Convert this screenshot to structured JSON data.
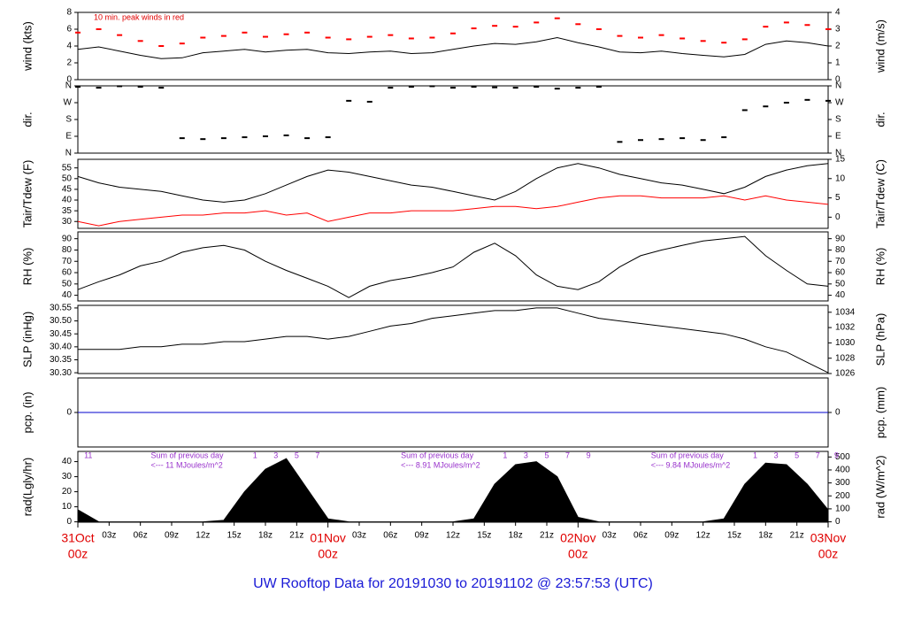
{
  "title": "UW Rooftop Data for 20191030  to  20191102 @ 23:57:53  (UTC)",
  "chart_data": [
    {
      "type": "line",
      "ylabel": "wind (kts)",
      "y2label": "wind (m/s)",
      "annotation": "10 min. peak winds in red",
      "xlim": [
        0,
        72
      ],
      "ylim": [
        0,
        8
      ],
      "yticks": [
        0,
        2,
        4,
        6,
        8
      ],
      "y2lim": [
        0,
        4
      ],
      "y2ticks": [
        0,
        1,
        2,
        3,
        4
      ],
      "x": [
        0,
        2,
        4,
        6,
        8,
        10,
        12,
        14,
        16,
        18,
        20,
        22,
        24,
        26,
        28,
        30,
        32,
        34,
        36,
        38,
        40,
        42,
        44,
        46,
        48,
        50,
        52,
        54,
        56,
        58,
        60,
        62,
        64,
        66,
        68,
        70,
        72
      ],
      "series": [
        {
          "type": "line",
          "color": "#000000",
          "values": [
            3.6,
            3.9,
            3.4,
            2.9,
            2.5,
            2.6,
            3.2,
            3.4,
            3.6,
            3.3,
            3.5,
            3.6,
            3.2,
            3.1,
            3.3,
            3.4,
            3.1,
            3.2,
            3.6,
            4.0,
            4.3,
            4.2,
            4.5,
            5.0,
            4.4,
            3.9,
            3.3,
            3.2,
            3.4,
            3.1,
            2.9,
            2.7,
            3.0,
            4.2,
            4.6,
            4.4,
            4.0
          ]
        },
        {
          "type": "scatter",
          "color": "#ff0000",
          "values": [
            5.6,
            6.0,
            5.3,
            4.6,
            4.0,
            4.3,
            5.0,
            5.2,
            5.6,
            5.1,
            5.4,
            5.6,
            5.0,
            4.8,
            5.1,
            5.3,
            4.9,
            5.0,
            5.5,
            6.1,
            6.4,
            6.3,
            6.8,
            7.3,
            6.6,
            6.0,
            5.2,
            5.0,
            5.3,
            4.9,
            4.6,
            4.4,
            4.8,
            6.3,
            6.8,
            6.5,
            6.0
          ]
        }
      ]
    },
    {
      "type": "scatter",
      "ylabel": "dir.",
      "y2label": "dir.",
      "xlim": [
        0,
        72
      ],
      "ylim": [
        0,
        360
      ],
      "yticks": [
        {
          "value": 0,
          "label": "N"
        },
        {
          "value": 90,
          "label": "E"
        },
        {
          "value": 180,
          "label": "S"
        },
        {
          "value": 270,
          "label": "W"
        },
        {
          "value": 360,
          "label": "N"
        }
      ],
      "y2lim": [
        0,
        360
      ],
      "y2ticks": [
        {
          "value": 0,
          "label": "N"
        },
        {
          "value": 90,
          "label": "E"
        },
        {
          "value": 180,
          "label": "S"
        },
        {
          "value": 270,
          "label": "W"
        },
        {
          "value": 360,
          "label": "N"
        }
      ],
      "x": [
        0,
        2,
        4,
        6,
        8,
        10,
        12,
        14,
        16,
        18,
        20,
        22,
        24,
        26,
        28,
        30,
        32,
        34,
        36,
        38,
        40,
        42,
        44,
        46,
        48,
        50,
        52,
        54,
        56,
        58,
        60,
        62,
        64,
        66,
        68,
        70,
        72
      ],
      "series": [
        {
          "type": "scatter",
          "color": "#000000",
          "values": [
            355,
            350,
            358,
            355,
            350,
            80,
            75,
            80,
            85,
            90,
            95,
            80,
            85,
            280,
            275,
            350,
            355,
            358,
            350,
            355,
            352,
            350,
            355,
            345,
            350,
            355,
            60,
            70,
            75,
            80,
            70,
            85,
            230,
            250,
            270,
            285,
            280
          ]
        }
      ]
    },
    {
      "type": "line",
      "ylabel": "Tair/Tdew (F)",
      "y2label": "Tair/Tdew (C)",
      "xlim": [
        0,
        72
      ],
      "ylim": [
        26.8,
        59
      ],
      "yticks": [
        30,
        35,
        40,
        45,
        50,
        55
      ],
      "y2lim": [
        -2.9,
        15
      ],
      "y2ticks": [
        0,
        5,
        10,
        15
      ],
      "x": [
        0,
        2,
        4,
        6,
        8,
        10,
        12,
        14,
        16,
        18,
        20,
        22,
        24,
        26,
        28,
        30,
        32,
        34,
        36,
        38,
        40,
        42,
        44,
        46,
        48,
        50,
        52,
        54,
        56,
        58,
        60,
        62,
        64,
        66,
        68,
        70,
        72
      ],
      "series": [
        {
          "type": "line",
          "color": "#000000",
          "values": [
            51,
            48,
            46,
            45,
            44,
            42,
            40,
            39,
            40,
            43,
            47,
            51,
            54,
            53,
            51,
            49,
            47,
            46,
            44,
            42,
            40,
            44,
            50,
            55,
            57,
            55,
            52,
            50,
            48,
            47,
            45,
            43,
            46,
            51,
            54,
            56,
            57
          ]
        },
        {
          "type": "line",
          "color": "#ff0000",
          "values": [
            30,
            28,
            30,
            31,
            32,
            33,
            33,
            34,
            34,
            35,
            33,
            34,
            30,
            32,
            34,
            34,
            35,
            35,
            35,
            36,
            37,
            37,
            36,
            37,
            39,
            41,
            42,
            42,
            41,
            41,
            41,
            42,
            40,
            42,
            40,
            39,
            38
          ]
        }
      ]
    },
    {
      "type": "line",
      "ylabel": "RH (%)",
      "y2label": "RH (%)",
      "xlim": [
        0,
        72
      ],
      "ylim": [
        35,
        96
      ],
      "yticks": [
        40,
        50,
        60,
        70,
        80,
        90
      ],
      "y2lim": [
        35,
        96
      ],
      "y2ticks": [
        40,
        50,
        60,
        70,
        80,
        90
      ],
      "x": [
        0,
        2,
        4,
        6,
        8,
        10,
        12,
        14,
        16,
        18,
        20,
        22,
        24,
        26,
        28,
        30,
        32,
        34,
        36,
        38,
        40,
        42,
        44,
        46,
        48,
        50,
        52,
        54,
        56,
        58,
        60,
        62,
        64,
        66,
        68,
        70,
        72
      ],
      "series": [
        {
          "type": "line",
          "color": "#000000",
          "values": [
            45,
            52,
            58,
            66,
            70,
            78,
            82,
            84,
            80,
            70,
            62,
            55,
            48,
            38,
            48,
            53,
            56,
            60,
            65,
            78,
            86,
            75,
            58,
            48,
            45,
            52,
            65,
            75,
            80,
            84,
            88,
            90,
            92,
            75,
            62,
            50,
            48
          ]
        }
      ]
    },
    {
      "type": "line",
      "ylabel": "SLP (inHg)",
      "y2label": "SLP (hPa)",
      "xlim": [
        0,
        72
      ],
      "ylim": [
        30.297,
        30.56
      ],
      "yticks": [
        {
          "value": 30.3,
          "label": "30.30"
        },
        {
          "value": 30.35,
          "label": "30.35"
        },
        {
          "value": 30.4,
          "label": "30.40"
        },
        {
          "value": 30.45,
          "label": "30.45"
        },
        {
          "value": 30.5,
          "label": "30.50"
        },
        {
          "value": 30.55,
          "label": "30.55"
        }
      ],
      "y2lim": [
        1026,
        1034.9
      ],
      "y2ticks": [
        1026,
        1028,
        1030,
        1032,
        1034
      ],
      "x": [
        0,
        2,
        4,
        6,
        8,
        10,
        12,
        14,
        16,
        18,
        20,
        22,
        24,
        26,
        28,
        30,
        32,
        34,
        36,
        38,
        40,
        42,
        44,
        46,
        48,
        50,
        52,
        54,
        56,
        58,
        60,
        62,
        64,
        66,
        68,
        70,
        72
      ],
      "series": [
        {
          "type": "line",
          "color": "#000000",
          "values": [
            30.39,
            30.39,
            30.39,
            30.4,
            30.4,
            30.41,
            30.41,
            30.42,
            30.42,
            30.43,
            30.44,
            30.44,
            30.43,
            30.44,
            30.46,
            30.48,
            30.49,
            30.51,
            30.52,
            30.53,
            30.54,
            30.54,
            30.55,
            30.55,
            30.53,
            30.51,
            30.5,
            30.49,
            30.48,
            30.47,
            30.46,
            30.45,
            30.43,
            30.4,
            30.38,
            30.34,
            30.3
          ]
        }
      ]
    },
    {
      "type": "line",
      "ylabel": "pcp. (in)",
      "y2label": "pcp. (mm)",
      "xlim": [
        0,
        72
      ],
      "ylim": [
        -1,
        1
      ],
      "yticks": [
        0
      ],
      "y2lim": [
        -1,
        1
      ],
      "y2ticks": [
        0
      ],
      "x": [
        0,
        2,
        4,
        6,
        8,
        10,
        12,
        14,
        16,
        18,
        20,
        22,
        24,
        26,
        28,
        30,
        32,
        34,
        36,
        38,
        40,
        42,
        44,
        46,
        48,
        50,
        52,
        54,
        56,
        58,
        60,
        62,
        64,
        66,
        68,
        70,
        72
      ],
      "series": [
        {
          "type": "line",
          "color": "#0000cc",
          "values": [
            0,
            0,
            0,
            0,
            0,
            0,
            0,
            0,
            0,
            0,
            0,
            0,
            0,
            0,
            0,
            0,
            0,
            0,
            0,
            0,
            0,
            0,
            0,
            0,
            0,
            0,
            0,
            0,
            0,
            0,
            0,
            0,
            0,
            0,
            0,
            0,
            0
          ]
        }
      ]
    },
    {
      "type": "area",
      "ylabel": "rad(Lgly/hr)",
      "y2label": "rad (W/m^2)",
      "xlim": [
        0,
        72
      ],
      "ylim": [
        -0.25,
        46.8
      ],
      "yticks": [
        0,
        10,
        20,
        30,
        40
      ],
      "y2lim": [
        -3,
        543
      ],
      "y2ticks": [
        0,
        100,
        200,
        300,
        400,
        500
      ],
      "xticks": [
        {
          "value": 3,
          "label": "03z"
        },
        {
          "value": 6,
          "label": "06z"
        },
        {
          "value": 9,
          "label": "09z"
        },
        {
          "value": 12,
          "label": "12z"
        },
        {
          "value": 15,
          "label": "15z"
        },
        {
          "value": 18,
          "label": "18z"
        },
        {
          "value": 21,
          "label": "21z"
        },
        {
          "value": 27,
          "label": "03z"
        },
        {
          "value": 30,
          "label": "06z"
        },
        {
          "value": 33,
          "label": "09z"
        },
        {
          "value": 36,
          "label": "12z"
        },
        {
          "value": 39,
          "label": "15z"
        },
        {
          "value": 42,
          "label": "18z"
        },
        {
          "value": 45,
          "label": "21z"
        },
        {
          "value": 51,
          "label": "03z"
        },
        {
          "value": 54,
          "label": "06z"
        },
        {
          "value": 57,
          "label": "09z"
        },
        {
          "value": 60,
          "label": "12z"
        },
        {
          "value": 63,
          "label": "15z"
        },
        {
          "value": 66,
          "label": "18z"
        },
        {
          "value": 69,
          "label": "21z"
        }
      ],
      "x_major_ticks": [
        {
          "value": 0,
          "label": "00z"
        },
        {
          "value": 24,
          "label": "00z"
        },
        {
          "value": 48,
          "label": "00z"
        },
        {
          "value": 72,
          "label": "00z"
        }
      ],
      "x_day_labels": [
        {
          "value": 0,
          "label": "31Oct"
        },
        {
          "value": 24,
          "label": "01Nov"
        },
        {
          "value": 48,
          "label": "02Nov"
        },
        {
          "value": 72,
          "label": "03Nov"
        }
      ],
      "hour_marks": [
        {
          "x": 1,
          "text": "11"
        },
        {
          "x": 17,
          "text": "1"
        },
        {
          "x": 19,
          "text": "3"
        },
        {
          "x": 21,
          "text": "5"
        },
        {
          "x": 23,
          "text": "7"
        },
        {
          "x": 41,
          "text": "1"
        },
        {
          "x": 43,
          "text": "3"
        },
        {
          "x": 45,
          "text": "5"
        },
        {
          "x": 47,
          "text": "7"
        },
        {
          "x": 49,
          "text": "9"
        },
        {
          "x": 65,
          "text": "1"
        },
        {
          "x": 67,
          "text": "3"
        },
        {
          "x": 69,
          "text": "5"
        },
        {
          "x": 71,
          "text": "7"
        },
        {
          "x": 72.8,
          "text": "9"
        }
      ],
      "notes": [
        {
          "x": 7,
          "lines": [
            "Sum of previous day",
            "<--- 11 MJoules/m^2"
          ]
        },
        {
          "x": 31,
          "lines": [
            "Sum of previous day",
            "<--- 8.91 MJoules/m^2"
          ]
        },
        {
          "x": 55,
          "lines": [
            "Sum of previous day",
            "<--- 9.84 MJoules/m^2"
          ]
        }
      ],
      "x": [
        0,
        2,
        4,
        6,
        8,
        10,
        12,
        14,
        16,
        18,
        20,
        22,
        24,
        26,
        28,
        30,
        32,
        34,
        36,
        38,
        40,
        42,
        44,
        46,
        48,
        50,
        52,
        54,
        56,
        58,
        60,
        62,
        64,
        66,
        68,
        70,
        72
      ],
      "series": [
        {
          "type": "area",
          "color": "#000000",
          "values": [
            8,
            0,
            0,
            0,
            0,
            0,
            0,
            1,
            20,
            35,
            42,
            22,
            2,
            0,
            0,
            0,
            0,
            0,
            0,
            2,
            25,
            38,
            40,
            30,
            3,
            0,
            0,
            0,
            0,
            0,
            0,
            2,
            25,
            39,
            38,
            25,
            8
          ]
        }
      ]
    }
  ]
}
